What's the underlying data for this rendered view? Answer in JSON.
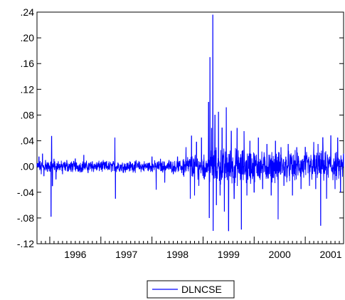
{
  "chart_data": {
    "type": "line",
    "title": "",
    "xlabel": "",
    "ylabel": "",
    "x_range": [
      "1995-10",
      "2001-10"
    ],
    "ylim": [
      -0.12,
      0.24
    ],
    "y_ticks": [
      {
        "value": 0.24,
        "label": ".24"
      },
      {
        "value": 0.2,
        "label": ".20"
      },
      {
        "value": 0.16,
        "label": ".16"
      },
      {
        "value": 0.12,
        "label": ".12"
      },
      {
        "value": 0.08,
        "label": ".08"
      },
      {
        "value": 0.04,
        "label": ".04"
      },
      {
        "value": 0.0,
        "label": ".00"
      },
      {
        "value": -0.04,
        "label": "-.04"
      },
      {
        "value": -0.08,
        "label": "-.08"
      },
      {
        "value": -0.12,
        "label": "-.12"
      }
    ],
    "x_ticks": [
      "1996",
      "1997",
      "1998",
      "1999",
      "2000",
      "2001"
    ],
    "grid": false,
    "legend_position": "bottom-center",
    "series": [
      {
        "name": "DLNCSE",
        "color": "#0000ff",
        "frequency": "daily",
        "points": [
          [
            "1995-10-01",
            0.004
          ],
          [
            "1995-10-15",
            0.015
          ],
          [
            "1995-11-01",
            -0.012
          ],
          [
            "1995-11-10",
            0.02
          ],
          [
            "1995-11-20",
            -0.015
          ],
          [
            "1995-12-01",
            0.01
          ],
          [
            "1995-12-15",
            -0.008
          ],
          [
            "1996-01-10",
            -0.078
          ],
          [
            "1996-01-14",
            0.047
          ],
          [
            "1996-01-20",
            -0.03
          ],
          [
            "1996-02-01",
            0.012
          ],
          [
            "1996-02-15",
            -0.02
          ],
          [
            "1996-03-01",
            0.008
          ],
          [
            "1996-04-01",
            -0.012
          ],
          [
            "1996-05-01",
            0.01
          ],
          [
            "1996-06-01",
            -0.008
          ],
          [
            "1996-07-01",
            0.012
          ],
          [
            "1996-08-01",
            -0.006
          ],
          [
            "1996-09-01",
            0.018
          ],
          [
            "1996-10-01",
            -0.01
          ],
          [
            "1996-11-01",
            0.008
          ],
          [
            "1996-12-01",
            -0.006
          ],
          [
            "1997-01-01",
            0.006
          ],
          [
            "1997-03-01",
            -0.005
          ],
          [
            "1997-04-10",
            0.045
          ],
          [
            "1997-04-14",
            -0.05
          ],
          [
            "1997-05-01",
            0.006
          ],
          [
            "1997-07-01",
            -0.005
          ],
          [
            "1997-09-01",
            0.008
          ],
          [
            "1997-11-01",
            -0.006
          ],
          [
            "1998-01-01",
            0.015
          ],
          [
            "1998-02-01",
            -0.036
          ],
          [
            "1998-03-01",
            0.012
          ],
          [
            "1998-04-01",
            -0.025
          ],
          [
            "1998-05-01",
            0.01
          ],
          [
            "1998-06-01",
            -0.012
          ],
          [
            "1998-07-01",
            0.015
          ],
          [
            "1998-08-01",
            -0.01
          ],
          [
            "1998-09-01",
            0.03
          ],
          [
            "1998-10-01",
            -0.05
          ],
          [
            "1998-10-10",
            0.048
          ],
          [
            "1998-11-01",
            -0.045
          ],
          [
            "1998-11-15",
            0.038
          ],
          [
            "1998-12-01",
            -0.03
          ],
          [
            "1998-12-20",
            0.045
          ],
          [
            "1999-01-10",
            -0.02
          ],
          [
            "1999-02-10",
            0.1
          ],
          [
            "1999-02-15",
            -0.08
          ],
          [
            "1999-02-20",
            0.17
          ],
          [
            "1999-03-01",
            0.06
          ],
          [
            "1999-03-10",
            0.236
          ],
          [
            "1999-03-12",
            -0.1
          ],
          [
            "1999-03-25",
            0.08
          ],
          [
            "1999-04-05",
            -0.06
          ],
          [
            "1999-04-20",
            0.085
          ],
          [
            "1999-05-01",
            -0.045
          ],
          [
            "1999-05-15",
            0.06
          ],
          [
            "1999-06-01",
            -0.07
          ],
          [
            "1999-06-15",
            0.092
          ],
          [
            "1999-07-01",
            -0.1
          ],
          [
            "1999-07-20",
            0.055
          ],
          [
            "1999-08-10",
            -0.05
          ],
          [
            "1999-09-01",
            0.06
          ],
          [
            "1999-10-01",
            -0.098
          ],
          [
            "1999-10-20",
            0.055
          ],
          [
            "1999-11-10",
            -0.045
          ],
          [
            "1999-12-01",
            0.04
          ],
          [
            "2000-01-01",
            -0.04
          ],
          [
            "2000-02-01",
            0.045
          ],
          [
            "2000-03-01",
            -0.035
          ],
          [
            "2000-04-01",
            0.035
          ],
          [
            "2000-05-01",
            -0.045
          ],
          [
            "2000-06-01",
            0.04
          ],
          [
            "2000-06-20",
            -0.082
          ],
          [
            "2000-07-10",
            0.03
          ],
          [
            "2000-08-01",
            -0.03
          ],
          [
            "2000-09-01",
            0.035
          ],
          [
            "2000-10-01",
            -0.045
          ],
          [
            "2000-11-01",
            0.03
          ],
          [
            "2000-12-01",
            -0.035
          ],
          [
            "2001-01-01",
            0.03
          ],
          [
            "2001-02-01",
            -0.03
          ],
          [
            "2001-03-01",
            0.038
          ],
          [
            "2001-03-15",
            -0.035
          ],
          [
            "2001-04-01",
            0.035
          ],
          [
            "2001-04-20",
            -0.092
          ],
          [
            "2001-05-05",
            0.045
          ],
          [
            "2001-06-01",
            -0.05
          ],
          [
            "2001-07-01",
            0.048
          ],
          [
            "2001-08-01",
            -0.035
          ],
          [
            "2001-08-20",
            0.045
          ],
          [
            "2001-09-10",
            -0.04
          ],
          [
            "2001-10-01",
            0.02
          ]
        ]
      }
    ]
  }
}
